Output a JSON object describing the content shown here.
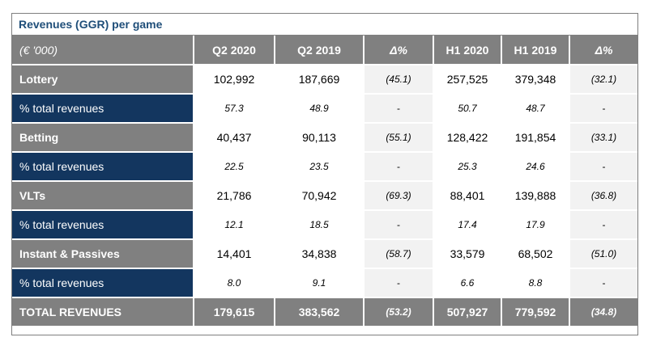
{
  "title": "Revenues (GGR) per game",
  "columns": [
    "(€ '000)",
    "Q2 2020",
    "Q2 2019",
    "Δ%",
    "H1 2020",
    "H1 2019",
    "Δ%"
  ],
  "rows": [
    {
      "label": "Lottery",
      "cells": [
        "102,992",
        "187,669",
        "(45.1)",
        "257,525",
        "379,348",
        "(32.1)"
      ]
    },
    {
      "label": "% total revenues",
      "cells": [
        "57.3",
        "48.9",
        "-",
        "50.7",
        "48.7",
        "-"
      ]
    },
    {
      "label": "Betting",
      "cells": [
        "40,437",
        "90,113",
        "(55.1)",
        "128,422",
        "191,854",
        "(33.1)"
      ]
    },
    {
      "label": "% total revenues",
      "cells": [
        "22.5",
        "23.5",
        "-",
        "25.3",
        "24.6",
        "-"
      ]
    },
    {
      "label": "VLTs",
      "cells": [
        "21,786",
        "70,942",
        "(69.3)",
        "88,401",
        "139,888",
        "(36.8)"
      ]
    },
    {
      "label": "% total revenues",
      "cells": [
        "12.1",
        "18.5",
        "-",
        "17.4",
        "17.9",
        "-"
      ]
    },
    {
      "label": "Instant & Passives",
      "cells": [
        "14,401",
        "34,838",
        "(58.7)",
        "33,579",
        "68,502",
        "(51.0)"
      ]
    },
    {
      "label": "% total revenues",
      "cells": [
        "8.0",
        "9.1",
        "-",
        "6.6",
        "8.8",
        "-"
      ]
    }
  ],
  "total": {
    "label": "TOTAL REVENUES",
    "cells": [
      "179,615",
      "383,562",
      "(53.2)",
      "507,927",
      "779,592",
      "(34.8)"
    ]
  },
  "colors": {
    "header_gray": "#808080",
    "navy": "#13365f",
    "title_blue": "#1f4e79",
    "pct_bg": "#f2f2f2"
  }
}
